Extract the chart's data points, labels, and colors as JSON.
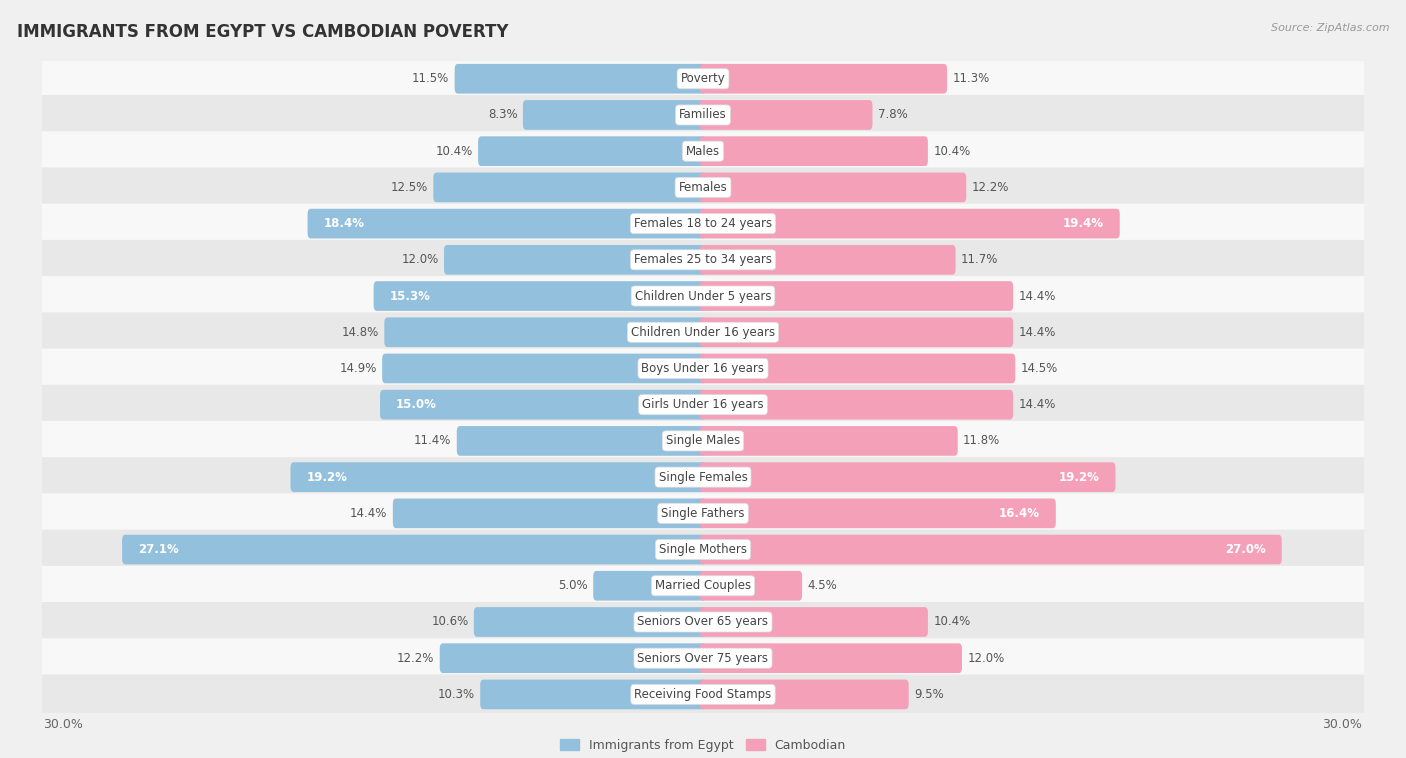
{
  "title": "IMMIGRANTS FROM EGYPT VS CAMBODIAN POVERTY",
  "source": "Source: ZipAtlas.com",
  "categories": [
    "Poverty",
    "Families",
    "Males",
    "Females",
    "Females 18 to 24 years",
    "Females 25 to 34 years",
    "Children Under 5 years",
    "Children Under 16 years",
    "Boys Under 16 years",
    "Girls Under 16 years",
    "Single Males",
    "Single Females",
    "Single Fathers",
    "Single Mothers",
    "Married Couples",
    "Seniors Over 65 years",
    "Seniors Over 75 years",
    "Receiving Food Stamps"
  ],
  "egypt_values": [
    11.5,
    8.3,
    10.4,
    12.5,
    18.4,
    12.0,
    15.3,
    14.8,
    14.9,
    15.0,
    11.4,
    19.2,
    14.4,
    27.1,
    5.0,
    10.6,
    12.2,
    10.3
  ],
  "cambodian_values": [
    11.3,
    7.8,
    10.4,
    12.2,
    19.4,
    11.7,
    14.4,
    14.4,
    14.5,
    14.4,
    11.8,
    19.2,
    16.4,
    27.0,
    4.5,
    10.4,
    12.0,
    9.5
  ],
  "egypt_color": "#92c0dd",
  "cambodian_color": "#f4a0b9",
  "egypt_label": "Immigrants from Egypt",
  "cambodian_label": "Cambodian",
  "xlim": 30.0,
  "bar_height": 0.52,
  "bg_color": "#f0f0f0",
  "row_light": "#f8f8f8",
  "row_dark": "#e8e8e8",
  "title_fontsize": 12,
  "cat_fontsize": 8.5,
  "val_fontsize": 8.5,
  "axis_fontsize": 9,
  "white_text_threshold": 15.0
}
